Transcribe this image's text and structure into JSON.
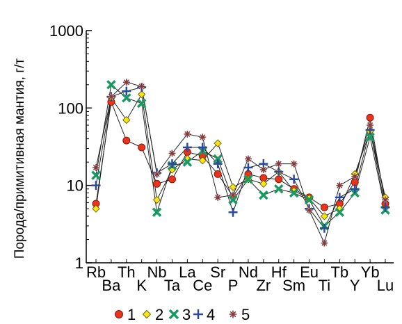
{
  "chart_data": {
    "type": "line",
    "y_scale": "log",
    "ylim": [
      1,
      1000
    ],
    "ylabel": "Порода/примитивная мантия, г/т",
    "y_ticks": [
      {
        "value": 1,
        "label": "1"
      },
      {
        "value": 10,
        "label": "10"
      },
      {
        "value": 100,
        "label": "100"
      },
      {
        "value": 1000,
        "label": "1000"
      }
    ],
    "categories": [
      "Rb",
      "Ba",
      "Th",
      "K",
      "Nb",
      "Ta",
      "La",
      "Ce",
      "Sr",
      "P",
      "Nd",
      "Zr",
      "Hf",
      "Sm",
      "Eu",
      "Ti",
      "Tb",
      "Y",
      "Yb",
      "Lu"
    ],
    "series": [
      {
        "name": "1",
        "marker": "circle",
        "fill": "#e8341c",
        "stroke": "#8a1a08",
        "values": [
          5.8,
          120,
          38,
          31,
          10.5,
          12,
          27,
          24,
          14,
          7.2,
          14,
          12.5,
          12,
          9,
          7,
          5.2,
          5.8,
          11,
          75,
          5.8
        ]
      },
      {
        "name": "2",
        "marker": "diamond",
        "fill": "#f6e51a",
        "stroke": "#7a6a00",
        "values": [
          5,
          135,
          70,
          150,
          6.5,
          16,
          22,
          21,
          35,
          9.5,
          12,
          10.5,
          15,
          8.5,
          6.8,
          4,
          5,
          14,
          50,
          7
        ]
      },
      {
        "name": "3",
        "marker": "x",
        "fill": "#1a9a62",
        "stroke": "#0f7a48",
        "values": [
          13.5,
          200,
          135,
          115,
          4.5,
          18,
          20,
          28,
          22,
          6.5,
          12,
          7.5,
          9,
          8,
          6.5,
          3,
          4.5,
          8,
          42,
          4.8
        ]
      },
      {
        "name": "4",
        "marker": "plus",
        "fill": "#2c4a9a",
        "stroke": "#2c4a9a",
        "values": [
          10,
          140,
          165,
          185,
          14.5,
          19,
          31,
          31,
          19,
          4.5,
          17,
          19,
          15,
          12,
          5,
          2.8,
          7,
          9,
          52,
          5.2
        ]
      },
      {
        "name": "5",
        "marker": "star",
        "fill": "#f4b9b9",
        "stroke": "#7a3c3c",
        "values": [
          17,
          140,
          215,
          190,
          14,
          26,
          46,
          42,
          7,
          7.5,
          22,
          16,
          19,
          19,
          4.8,
          1.8,
          10,
          13,
          60,
          6.5
        ]
      }
    ],
    "legend_position": "bottom",
    "grid": false
  }
}
